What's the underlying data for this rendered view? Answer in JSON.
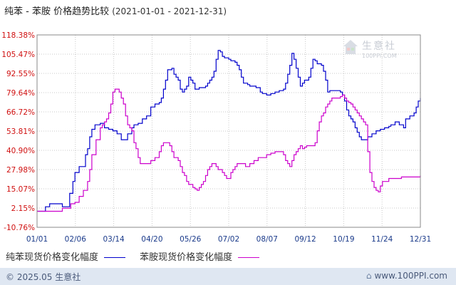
{
  "title": {
    "main": "纯苯 - 苯胺 价格趋势比较",
    "range": "(2021-01-01 - 2021-12-31)"
  },
  "legend": [
    {
      "name": "纯苯现货价格变化幅度",
      "color": "#0000cc"
    },
    {
      "name": "苯胺现货价格变化幅度",
      "color": "#cc00cc"
    }
  ],
  "footer": {
    "copyright": "© 2025.05 生意社",
    "site": "www.100PPI.com"
  },
  "watermark": {
    "name": "生意社",
    "site": "100PPI.COM",
    "icon": "house-logo-icon"
  },
  "chart_data": {
    "type": "line",
    "title": "纯苯 - 苯胺 价格趋势比较",
    "xlabel": "",
    "ylabel": "",
    "x_ticks": [
      "01/01",
      "02/06",
      "03/14",
      "04/20",
      "05/26",
      "07/02",
      "08/07",
      "09/12",
      "10/19",
      "11/24",
      "12/31"
    ],
    "y_ticks": [
      118.38,
      105.47,
      92.55,
      79.64,
      66.72,
      53.81,
      40.9,
      27.98,
      15.07,
      2.15,
      -10.76
    ],
    "ylim": [
      -10.76,
      118.38
    ],
    "xlim_days": [
      0,
      364
    ],
    "grid": true,
    "legend_position": "bottom",
    "series": [
      {
        "name": "纯苯现货价格变化幅度",
        "color": "#0000cc",
        "points": [
          [
            0,
            0
          ],
          [
            6,
            0
          ],
          [
            8,
            3
          ],
          [
            12,
            5
          ],
          [
            22,
            5
          ],
          [
            24,
            3
          ],
          [
            28,
            3
          ],
          [
            31,
            12
          ],
          [
            34,
            20
          ],
          [
            36,
            26
          ],
          [
            40,
            30
          ],
          [
            44,
            30
          ],
          [
            46,
            38
          ],
          [
            48,
            42
          ],
          [
            50,
            50
          ],
          [
            52,
            55
          ],
          [
            55,
            58
          ],
          [
            60,
            59
          ],
          [
            64,
            56
          ],
          [
            68,
            55
          ],
          [
            72,
            54
          ],
          [
            76,
            52
          ],
          [
            80,
            48
          ],
          [
            84,
            48
          ],
          [
            86,
            52
          ],
          [
            90,
            56
          ],
          [
            92,
            58
          ],
          [
            96,
            59
          ],
          [
            100,
            62
          ],
          [
            104,
            64
          ],
          [
            108,
            70
          ],
          [
            112,
            72
          ],
          [
            116,
            73
          ],
          [
            118,
            76
          ],
          [
            120,
            82
          ],
          [
            122,
            88
          ],
          [
            124,
            95
          ],
          [
            128,
            96
          ],
          [
            130,
            92
          ],
          [
            132,
            90
          ],
          [
            134,
            88
          ],
          [
            136,
            82
          ],
          [
            138,
            80
          ],
          [
            140,
            82
          ],
          [
            142,
            84
          ],
          [
            144,
            90
          ],
          [
            146,
            88
          ],
          [
            148,
            86
          ],
          [
            150,
            82
          ],
          [
            154,
            83
          ],
          [
            158,
            83
          ],
          [
            160,
            84
          ],
          [
            162,
            86
          ],
          [
            164,
            88
          ],
          [
            166,
            90
          ],
          [
            168,
            94
          ],
          [
            170,
            102
          ],
          [
            172,
            108
          ],
          [
            174,
            107
          ],
          [
            176,
            104
          ],
          [
            178,
            103
          ],
          [
            180,
            103
          ],
          [
            182,
            102
          ],
          [
            184,
            101
          ],
          [
            188,
            100
          ],
          [
            190,
            98
          ],
          [
            192,
            95
          ],
          [
            194,
            90
          ],
          [
            196,
            86
          ],
          [
            200,
            85
          ],
          [
            202,
            84
          ],
          [
            206,
            84
          ],
          [
            208,
            83
          ],
          [
            212,
            80
          ],
          [
            214,
            79
          ],
          [
            218,
            78
          ],
          [
            222,
            79
          ],
          [
            226,
            80
          ],
          [
            230,
            81
          ],
          [
            234,
            82
          ],
          [
            236,
            86
          ],
          [
            238,
            92
          ],
          [
            240,
            98
          ],
          [
            242,
            106
          ],
          [
            244,
            102
          ],
          [
            246,
            96
          ],
          [
            248,
            90
          ],
          [
            250,
            84
          ],
          [
            252,
            86
          ],
          [
            254,
            88
          ],
          [
            256,
            88
          ],
          [
            258,
            90
          ],
          [
            260,
            96
          ],
          [
            262,
            102
          ],
          [
            264,
            101
          ],
          [
            266,
            99
          ],
          [
            270,
            98
          ],
          [
            272,
            94
          ],
          [
            274,
            88
          ],
          [
            276,
            80
          ],
          [
            278,
            81
          ],
          [
            282,
            81
          ],
          [
            286,
            81
          ],
          [
            288,
            80
          ],
          [
            290,
            78
          ],
          [
            292,
            74
          ],
          [
            294,
            68
          ],
          [
            296,
            64
          ],
          [
            298,
            62
          ],
          [
            300,
            60
          ],
          [
            302,
            56
          ],
          [
            304,
            53
          ],
          [
            306,
            50
          ],
          [
            308,
            48
          ],
          [
            310,
            48
          ],
          [
            314,
            50
          ],
          [
            318,
            52
          ],
          [
            322,
            54
          ],
          [
            326,
            55
          ],
          [
            330,
            56
          ],
          [
            334,
            57
          ],
          [
            336,
            58
          ],
          [
            340,
            60
          ],
          [
            344,
            58
          ],
          [
            348,
            56
          ],
          [
            350,
            62
          ],
          [
            354,
            64
          ],
          [
            358,
            66
          ],
          [
            360,
            70
          ],
          [
            362,
            74
          ],
          [
            364,
            76
          ]
        ]
      },
      {
        "name": "苯胺现货价格变化幅度",
        "color": "#cc00cc",
        "points": [
          [
            0,
            0
          ],
          [
            20,
            0
          ],
          [
            24,
            2
          ],
          [
            28,
            2
          ],
          [
            32,
            5
          ],
          [
            36,
            6
          ],
          [
            40,
            10
          ],
          [
            44,
            14
          ],
          [
            48,
            20
          ],
          [
            50,
            28
          ],
          [
            52,
            38
          ],
          [
            56,
            48
          ],
          [
            60,
            56
          ],
          [
            62,
            58
          ],
          [
            64,
            60
          ],
          [
            66,
            62
          ],
          [
            68,
            66
          ],
          [
            70,
            72
          ],
          [
            72,
            80
          ],
          [
            74,
            82
          ],
          [
            76,
            82
          ],
          [
            78,
            80
          ],
          [
            80,
            76
          ],
          [
            82,
            72
          ],
          [
            84,
            64
          ],
          [
            86,
            58
          ],
          [
            88,
            56
          ],
          [
            90,
            54
          ],
          [
            92,
            46
          ],
          [
            94,
            42
          ],
          [
            96,
            36
          ],
          [
            98,
            32
          ],
          [
            102,
            32
          ],
          [
            106,
            32
          ],
          [
            108,
            34
          ],
          [
            112,
            36
          ],
          [
            116,
            40
          ],
          [
            118,
            44
          ],
          [
            120,
            46
          ],
          [
            124,
            46
          ],
          [
            126,
            44
          ],
          [
            128,
            40
          ],
          [
            130,
            36
          ],
          [
            134,
            34
          ],
          [
            136,
            30
          ],
          [
            138,
            26
          ],
          [
            140,
            24
          ],
          [
            142,
            20
          ],
          [
            144,
            18
          ],
          [
            148,
            16
          ],
          [
            150,
            15
          ],
          [
            152,
            14
          ],
          [
            154,
            16
          ],
          [
            156,
            18
          ],
          [
            158,
            20
          ],
          [
            160,
            24
          ],
          [
            162,
            28
          ],
          [
            164,
            30
          ],
          [
            166,
            32
          ],
          [
            170,
            30
          ],
          [
            172,
            28
          ],
          [
            176,
            26
          ],
          [
            178,
            24
          ],
          [
            180,
            22
          ],
          [
            182,
            22
          ],
          [
            184,
            26
          ],
          [
            186,
            28
          ],
          [
            188,
            30
          ],
          [
            190,
            32
          ],
          [
            194,
            32
          ],
          [
            198,
            30
          ],
          [
            202,
            32
          ],
          [
            206,
            34
          ],
          [
            210,
            36
          ],
          [
            214,
            36
          ],
          [
            218,
            38
          ],
          [
            222,
            39
          ],
          [
            226,
            40
          ],
          [
            230,
            40
          ],
          [
            234,
            38
          ],
          [
            236,
            34
          ],
          [
            238,
            32
          ],
          [
            240,
            30
          ],
          [
            242,
            34
          ],
          [
            244,
            38
          ],
          [
            246,
            40
          ],
          [
            248,
            42
          ],
          [
            250,
            44
          ],
          [
            252,
            42
          ],
          [
            254,
            43
          ],
          [
            256,
            44
          ],
          [
            260,
            44
          ],
          [
            264,
            46
          ],
          [
            266,
            54
          ],
          [
            268,
            60
          ],
          [
            270,
            64
          ],
          [
            272,
            66
          ],
          [
            274,
            70
          ],
          [
            276,
            72
          ],
          [
            278,
            74
          ],
          [
            280,
            76
          ],
          [
            284,
            76
          ],
          [
            288,
            77
          ],
          [
            290,
            78
          ],
          [
            292,
            76
          ],
          [
            294,
            74
          ],
          [
            296,
            73
          ],
          [
            298,
            72
          ],
          [
            300,
            70
          ],
          [
            302,
            68
          ],
          [
            304,
            66
          ],
          [
            306,
            64
          ],
          [
            308,
            62
          ],
          [
            310,
            60
          ],
          [
            312,
            58
          ],
          [
            314,
            40
          ],
          [
            316,
            26
          ],
          [
            318,
            20
          ],
          [
            320,
            16
          ],
          [
            322,
            14
          ],
          [
            324,
            13
          ],
          [
            326,
            17
          ],
          [
            328,
            20
          ],
          [
            334,
            22
          ],
          [
            340,
            22
          ],
          [
            346,
            23
          ],
          [
            352,
            23
          ],
          [
            358,
            23
          ],
          [
            364,
            24
          ]
        ]
      }
    ]
  }
}
